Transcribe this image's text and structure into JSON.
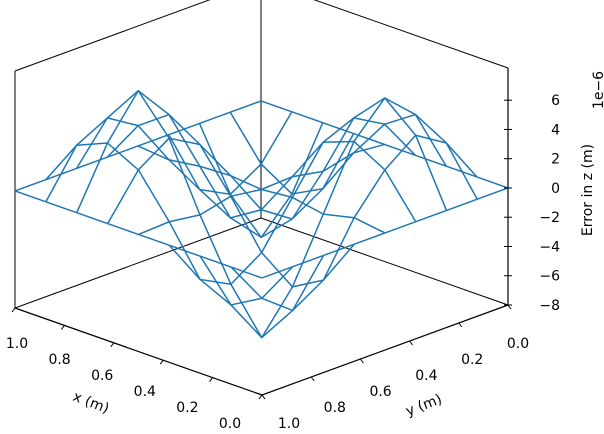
{
  "chart_data": {
    "type": "wireframe-3d",
    "xlabel": "x (m)",
    "ylabel": "y (m)",
    "zlabel": "Error in z (m)",
    "z_offset_label": "1e−6",
    "xlim": [
      0,
      1
    ],
    "ylim": [
      0,
      1
    ],
    "zlim": [
      -8,
      8.2
    ],
    "x_ticks": [
      "0.0",
      "0.2",
      "0.4",
      "0.6",
      "0.8",
      "1.0"
    ],
    "y_ticks": [
      "0.0",
      "0.2",
      "0.4",
      "0.6",
      "0.8",
      "1.0"
    ],
    "z_ticks": [
      "−8",
      "−6",
      "−4",
      "−2",
      "0",
      "2",
      "4",
      "6"
    ],
    "z_tick_values": [
      -8,
      -6,
      -4,
      -2,
      0,
      2,
      4,
      6
    ],
    "color": "#1f77b4",
    "grid_x": [
      0,
      0.125,
      0.25,
      0.375,
      0.5,
      0.625,
      0.75,
      0.875,
      1
    ],
    "grid_y": [
      0,
      0.125,
      0.25,
      0.375,
      0.5,
      0.625,
      0.75,
      0.875,
      1
    ],
    "z": [
      [
        0,
        0,
        0,
        0,
        0,
        0,
        0,
        0,
        0
      ],
      [
        0,
        3.1,
        4.4,
        2.8,
        0.3,
        -3.2,
        -4.5,
        -2.9,
        0
      ],
      [
        0,
        4.3,
        6.2,
        4.0,
        -0.2,
        -4.4,
        -7.1,
        -4.1,
        0
      ],
      [
        0,
        2.9,
        4.1,
        3.2,
        0.2,
        -2.8,
        -4.2,
        -3.1,
        0
      ],
      [
        0,
        0.2,
        -0.3,
        0.1,
        0,
        0.3,
        -0.2,
        0.1,
        0
      ],
      [
        0,
        -3.0,
        -4.3,
        -2.9,
        0.2,
        3.1,
        4.3,
        2.9,
        0
      ],
      [
        0,
        -4.1,
        -6.3,
        -4.2,
        0.1,
        4.4,
        6.8,
        4.0,
        0
      ],
      [
        0,
        -2.8,
        -4.1,
        -3.0,
        -0.2,
        2.9,
        4.2,
        3.1,
        0
      ],
      [
        0,
        0,
        0,
        0,
        0,
        0,
        0,
        0,
        0
      ]
    ]
  }
}
